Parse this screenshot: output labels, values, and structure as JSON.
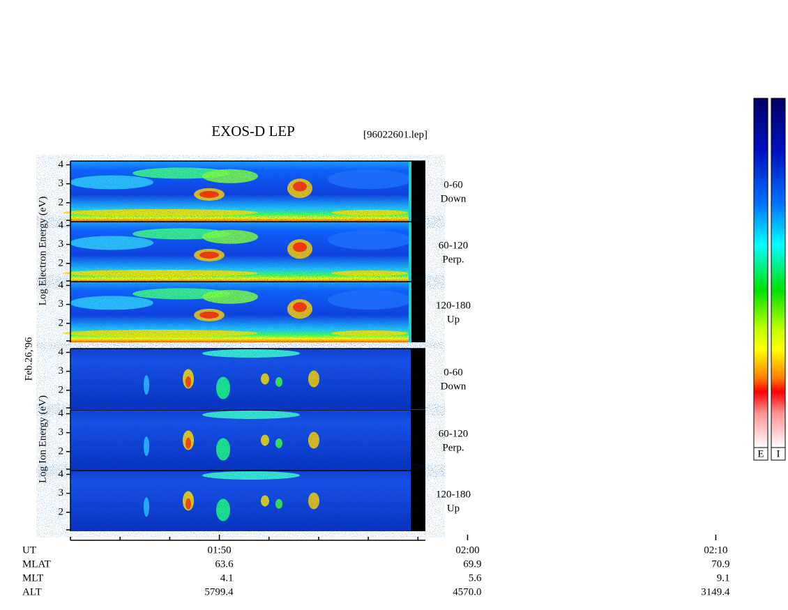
{
  "chart_data": {
    "type": "spectrogram",
    "title": "EXOS-D LEP",
    "subtitle": "[96022601.lep]",
    "date_label": "Feb.26,'96",
    "electron_axis_label": "Log Electron Energy (eV)",
    "ion_axis_label": "Log Ion Energy (eV)",
    "panels": [
      {
        "species": "electron",
        "pitch_angle": "0-60",
        "direction": "Down",
        "ylim": [
          1,
          4.2
        ],
        "yticks": [
          2,
          3,
          4
        ]
      },
      {
        "species": "electron",
        "pitch_angle": "60-120",
        "direction": "Perp.",
        "ylim": [
          1,
          4.2
        ],
        "yticks": [
          2,
          3,
          4
        ]
      },
      {
        "species": "electron",
        "pitch_angle": "120-180",
        "direction": "Up",
        "ylim": [
          1,
          4.2
        ],
        "yticks": [
          2,
          3,
          4
        ]
      },
      {
        "species": "ion",
        "pitch_angle": "0-60",
        "direction": "Down",
        "ylim": [
          1,
          4.2
        ],
        "yticks": [
          2,
          3,
          4
        ]
      },
      {
        "species": "ion",
        "pitch_angle": "60-120",
        "direction": "Perp.",
        "ylim": [
          1,
          4.2
        ],
        "yticks": [
          2,
          3,
          4
        ]
      },
      {
        "species": "ion",
        "pitch_angle": "120-180",
        "direction": "Up",
        "ylim": [
          1,
          4.2
        ],
        "yticks": [
          2,
          3,
          4
        ]
      }
    ],
    "xlim": [
      104,
      118.3
    ],
    "xticks": [
      {
        "value": 110,
        "label": "01:50"
      },
      {
        "value": 120,
        "label": "02:00"
      },
      {
        "value": 130,
        "label": "02:10"
      }
    ],
    "xminor_ticks": [
      104,
      106,
      108,
      112,
      114,
      116,
      118,
      122,
      124,
      126,
      128,
      132,
      134,
      136,
      138
    ],
    "ephemeris": [
      {
        "name": "UT",
        "values": []
      },
      {
        "name": "MLAT",
        "values": [
          "63.6",
          "69.9",
          "70.9"
        ]
      },
      {
        "name": "MLT",
        "values": [
          "4.1",
          "5.6",
          "9.1"
        ]
      },
      {
        "name": "ALT",
        "values": [
          "5799.4",
          "4570.0",
          "3149.4"
        ]
      }
    ],
    "colorbars": [
      "E",
      "I"
    ]
  }
}
